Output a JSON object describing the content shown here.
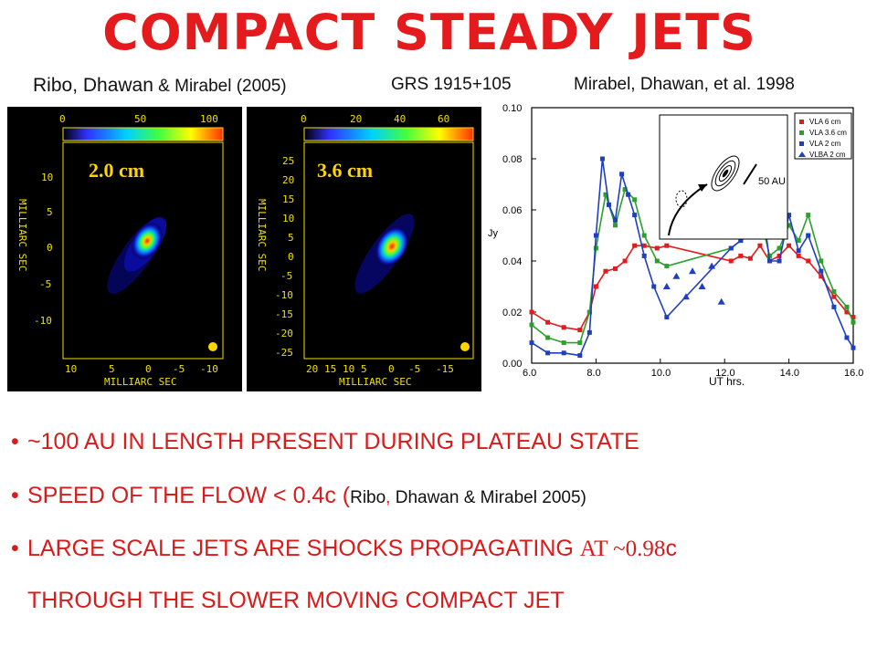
{
  "title": "COMPACT STEADY JETS",
  "refs": {
    "left_main": "Ribo, Dhawan",
    "left_small": " & Mirabel (2005)",
    "middle": "GRS 1915+105",
    "right": "Mirabel, Dhawan, et al. 1998"
  },
  "maps": [
    {
      "label": "2.0 cm",
      "colorbar_ticks": [
        "0",
        "50",
        "100"
      ],
      "y_ticks": [
        "10",
        "5",
        "0",
        "-5",
        "-10"
      ],
      "x_ticks": [
        "10",
        "5",
        "0",
        "-5",
        "-10"
      ],
      "x_axis_label": "MILLIARC SEC",
      "y_axis_label": "MILLIARC SEC"
    },
    {
      "label": "3.6 cm",
      "colorbar_ticks": [
        "0",
        "20",
        "40",
        "60"
      ],
      "y_ticks": [
        "25",
        "20",
        "15",
        "10",
        "5",
        "0",
        "-5",
        "-10",
        "-15",
        "-20",
        "-25"
      ],
      "x_ticks": [
        "20",
        "15",
        "10",
        "5",
        "0",
        "-5",
        "-15"
      ],
      "x_axis_label": "MILLIARC SEC",
      "y_axis_label": "MILLIARC SEC"
    }
  ],
  "chart_data": {
    "type": "line",
    "xlabel": "UT hrs.",
    "ylabel": "Jy",
    "xlim": [
      6.0,
      16.0
    ],
    "ylim": [
      0.0,
      0.1
    ],
    "x_ticks": [
      "6.0",
      "8.0",
      "10.0",
      "12.0",
      "14.0",
      "16.0"
    ],
    "y_ticks": [
      "0.00",
      "0.02",
      "0.04",
      "0.06",
      "0.08",
      "0.10"
    ],
    "legend_position": "top-right",
    "inset_label": "50 AU",
    "series": [
      {
        "name": "VLA 6 cm",
        "color": "#e41a1c",
        "x": [
          6.0,
          6.5,
          7.0,
          7.5,
          7.8,
          8.0,
          8.3,
          8.6,
          8.9,
          9.2,
          9.5,
          9.9,
          10.2,
          12.2,
          12.5,
          12.8,
          13.1,
          13.4,
          13.7,
          14.0,
          14.3,
          14.6,
          15.0,
          15.4,
          15.8,
          16.0
        ],
        "y": [
          0.02,
          0.016,
          0.014,
          0.013,
          0.02,
          0.03,
          0.036,
          0.037,
          0.04,
          0.046,
          0.046,
          0.045,
          0.046,
          0.04,
          0.042,
          0.041,
          0.046,
          0.04,
          0.042,
          0.046,
          0.042,
          0.04,
          0.034,
          0.026,
          0.02,
          0.018
        ]
      },
      {
        "name": "VLA 3.6 cm",
        "color": "#2ca02c",
        "x": [
          6.0,
          6.5,
          7.0,
          7.5,
          7.8,
          8.0,
          8.3,
          8.6,
          8.9,
          9.2,
          9.5,
          9.9,
          10.2,
          12.2,
          12.5,
          12.8,
          13.1,
          13.4,
          13.7,
          14.0,
          14.3,
          14.6,
          15.0,
          15.4,
          15.8,
          16.0
        ],
        "y": [
          0.015,
          0.01,
          0.008,
          0.008,
          0.02,
          0.045,
          0.066,
          0.054,
          0.068,
          0.064,
          0.05,
          0.04,
          0.038,
          0.045,
          0.048,
          0.05,
          0.058,
          0.042,
          0.045,
          0.054,
          0.048,
          0.058,
          0.04,
          0.028,
          0.022,
          0.016
        ]
      },
      {
        "name": "VLA 2 cm",
        "color": "#1f3fbf",
        "x": [
          6.0,
          6.5,
          7.0,
          7.5,
          7.8,
          8.0,
          8.2,
          8.4,
          8.6,
          8.8,
          9.0,
          9.2,
          9.5,
          9.8,
          10.2,
          12.2,
          12.5,
          12.8,
          13.1,
          13.4,
          13.7,
          14.0,
          14.3,
          14.6,
          15.0,
          15.4,
          15.8,
          16.0
        ],
        "y": [
          0.008,
          0.004,
          0.004,
          0.003,
          0.012,
          0.05,
          0.08,
          0.062,
          0.056,
          0.074,
          0.066,
          0.058,
          0.042,
          0.03,
          0.018,
          0.045,
          0.048,
          0.056,
          0.068,
          0.04,
          0.04,
          0.058,
          0.044,
          0.05,
          0.036,
          0.022,
          0.01,
          0.006
        ]
      },
      {
        "name": "VLBA 2 cm",
        "color": "#1f3fbf",
        "x": [
          10.2,
          10.5,
          10.8,
          11.0,
          11.3,
          11.6,
          11.9
        ],
        "y": [
          0.03,
          0.034,
          0.026,
          0.036,
          0.03,
          0.038,
          0.024
        ]
      }
    ]
  },
  "bullets": [
    {
      "text": "~100 AU IN LENGTH PRESENT DURING PLATEAU STATE"
    },
    {
      "text": "SPEED OF THE FLOW < 0.4c (",
      "cite_a": "Ribo",
      "cite_comma": ",",
      "cite_b": " Dhawan & Mirabel 2005)"
    },
    {
      "text": "LARGE SCALE JETS ARE SHOCKS PROPAGATING ",
      "serif_part": "AT ~0.98",
      "tail": "c"
    },
    {
      "text": "THROUGH THE SLOWER MOVING COMPACT JET"
    }
  ],
  "bullet_symbol": "•"
}
